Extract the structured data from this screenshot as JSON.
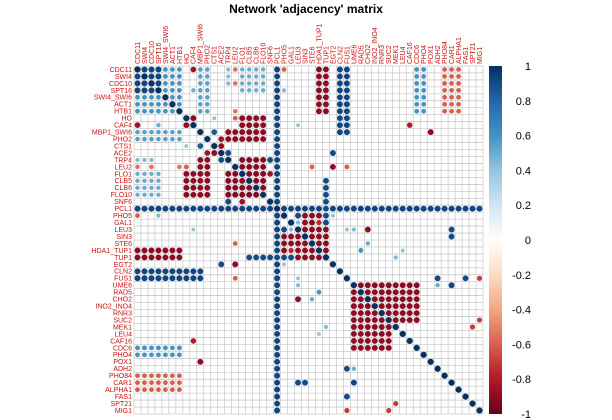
{
  "chart_data": {
    "type": "heatmap",
    "title": "Network 'adjacency' matrix",
    "row_labels": [
      "CDC11",
      "SWI4",
      "CDC10",
      "SPT16",
      "SWI4_SWI6",
      "ACT1",
      "HTB1",
      "HO",
      "CAF4",
      "MBP1_SWI6",
      "PHO2",
      "CTS1",
      "ACE2",
      "TRP4",
      "LEU2",
      "FLO1",
      "CLB5",
      "CLB6",
      "FLO10",
      "SNF6",
      "PCL1",
      "PHO5",
      "GAL1",
      "LEU3",
      "SIN3",
      "STE6",
      "HDA1_TUP1",
      "TUP1",
      "EGT2",
      "CLN2",
      "FUS1",
      "UME6",
      "RAD5",
      "CHO2",
      "INO2_INO4",
      "RNR3",
      "SUC2",
      "MEK1",
      "LEU4",
      "CAF16",
      "CDC6",
      "PHO4",
      "POX1",
      "ADH2",
      "PHO84",
      "CAR1",
      "ALPHA1",
      "FAS1",
      "SPT21",
      "MIG1"
    ],
    "col_labels": [
      "CDC11",
      "SWI4",
      "CDC10",
      "SPT16",
      "SWI4_SWI6",
      "ACT1",
      "HTB1",
      "HO",
      "CAF4",
      "MBP1_SWI6",
      "PHO2",
      "CTS1",
      "ACE2",
      "TRP4",
      "LEU2",
      "FLO1",
      "CLB5",
      "CLB6",
      "FLO10",
      "SNF6",
      "PCL1",
      "PHO5",
      "GAL1",
      "LEU3",
      "SIN3",
      "STE6",
      "HDA1_TUP1",
      "TUP1",
      "EGT2",
      "CLN2",
      "FUS1",
      "UME6",
      "RAD5",
      "CHO2",
      "INO2_INO4",
      "RNR3",
      "SUC2",
      "MEK1",
      "LEU4",
      "CAF16",
      "CDC6",
      "PHO4",
      "POX1",
      "ADH2",
      "PHO84",
      "CAR1",
      "ALPHA1",
      "FAS1",
      "SPT21",
      "MIG1"
    ],
    "colorbar": {
      "ticks": [
        "1",
        "0.8",
        "0.6",
        "0.4",
        "0.2",
        "0",
        "-0.2",
        "-0.4",
        "-0.6",
        "-0.8",
        "-1"
      ],
      "range": [
        -1,
        1
      ]
    },
    "blocks": [
      {
        "rows": [
          0,
          5
        ],
        "cols": [
          0,
          6
        ],
        "value": 0.6
      },
      {
        "rows": [
          0,
          3
        ],
        "cols": [
          0,
          3
        ],
        "value": 0.92
      },
      {
        "rows": [
          9,
          10
        ],
        "cols": [
          0,
          6
        ],
        "value": 0.55
      },
      {
        "rows": [
          15,
          18
        ],
        "cols": [
          0,
          3
        ],
        "value": 0.5
      },
      {
        "rows": [
          15,
          18
        ],
        "cols": [
          7,
          8
        ],
        "value": -0.9
      },
      {
        "rows": [
          15,
          18
        ],
        "cols": [
          13,
          18
        ],
        "value": -0.92
      },
      {
        "rows": [
          9,
          10
        ],
        "cols": [
          13,
          18
        ],
        "value": -0.9
      },
      {
        "rows": [
          20,
          20
        ],
        "cols": [
          0,
          49
        ],
        "value": 0.92
      },
      {
        "rows": [
          29,
          30
        ],
        "cols": [
          0,
          9
        ],
        "value": 0.92
      },
      {
        "rows": [
          26,
          27
        ],
        "cols": [
          0,
          6
        ],
        "value": -0.9
      },
      {
        "rows": [
          31,
          36
        ],
        "cols": [
          31,
          40
        ],
        "value": -0.9
      },
      {
        "rows": [
          40,
          41
        ],
        "cols": [
          0,
          6
        ],
        "value": 0.6
      },
      {
        "rows": [
          44,
          46
        ],
        "cols": [
          0,
          6
        ],
        "value": -0.6
      },
      {
        "rows": [
          24,
          27
        ],
        "cols": [
          21,
          27
        ],
        "value": -0.9
      },
      {
        "rows": [
          27,
          27
        ],
        "cols": [
          16,
          22
        ],
        "value": 0.9
      }
    ],
    "cells": [
      {
        "r": 7,
        "c": 8,
        "v": -0.9
      },
      {
        "r": 7,
        "c": 11,
        "v": 0.4
      },
      {
        "r": 7,
        "c": 14,
        "v": -0.6
      },
      {
        "r": 8,
        "c": 0,
        "v": -0.85
      },
      {
        "r": 8,
        "c": 3,
        "v": 0.5
      },
      {
        "r": 8,
        "c": 23,
        "v": 0.4
      },
      {
        "r": 11,
        "c": 9,
        "v": 0.85
      },
      {
        "r": 11,
        "c": 12,
        "v": -0.9
      },
      {
        "r": 12,
        "c": 10,
        "v": -0.85
      },
      {
        "r": 12,
        "c": 13,
        "v": 0.9
      },
      {
        "r": 13,
        "c": 0,
        "v": 0.45
      },
      {
        "r": 13,
        "c": 1,
        "v": 0.45
      },
      {
        "r": 13,
        "c": 2,
        "v": 0.45
      },
      {
        "r": 14,
        "c": 0,
        "v": -0.55
      },
      {
        "r": 14,
        "c": 2,
        "v": -0.55
      },
      {
        "r": 14,
        "c": 6,
        "v": -0.55
      },
      {
        "r": 14,
        "c": 25,
        "v": -0.6
      },
      {
        "r": 14,
        "c": 30,
        "v": -0.6
      },
      {
        "r": 19,
        "c": 13,
        "v": 0.9
      },
      {
        "r": 19,
        "c": 15,
        "v": -0.85
      },
      {
        "r": 21,
        "c": 0,
        "v": -0.6
      },
      {
        "r": 21,
        "c": 3,
        "v": 0.45
      },
      {
        "r": 21,
        "c": 23,
        "v": 0.9
      },
      {
        "r": 21,
        "c": 28,
        "v": 0.4
      },
      {
        "r": 22,
        "c": 23,
        "v": 0.45
      },
      {
        "r": 22,
        "c": 26,
        "v": -0.75
      },
      {
        "r": 23,
        "c": 30,
        "v": 0.4
      },
      {
        "r": 23,
        "c": 33,
        "v": -0.9
      },
      {
        "r": 28,
        "c": 12,
        "v": 0.9
      },
      {
        "r": 28,
        "c": 14,
        "v": -0.9
      },
      {
        "r": 31,
        "c": 23,
        "v": 0.45
      },
      {
        "r": 32,
        "c": 26,
        "v": 0.6
      },
      {
        "r": 33,
        "c": 25,
        "v": 0.5
      },
      {
        "r": 36,
        "c": 49,
        "v": -0.7
      },
      {
        "r": 37,
        "c": 27,
        "v": 0.45
      },
      {
        "r": 38,
        "c": 26,
        "v": 0.4
      },
      {
        "r": 39,
        "c": 8,
        "v": -0.8
      },
      {
        "r": 42,
        "c": 9,
        "v": -0.9
      },
      {
        "r": 43,
        "c": 30,
        "v": 0.9
      },
      {
        "r": 43,
        "c": 31,
        "v": 0.5
      },
      {
        "r": 45,
        "c": 23,
        "v": 0.9
      },
      {
        "r": 45,
        "c": 24,
        "v": 0.9
      },
      {
        "r": 45,
        "c": 31,
        "v": 0.92
      },
      {
        "r": 47,
        "c": 30,
        "v": 0.9
      },
      {
        "r": 48,
        "c": 37,
        "v": -0.7
      },
      {
        "r": 49,
        "c": 30,
        "v": -0.7
      }
    ]
  }
}
